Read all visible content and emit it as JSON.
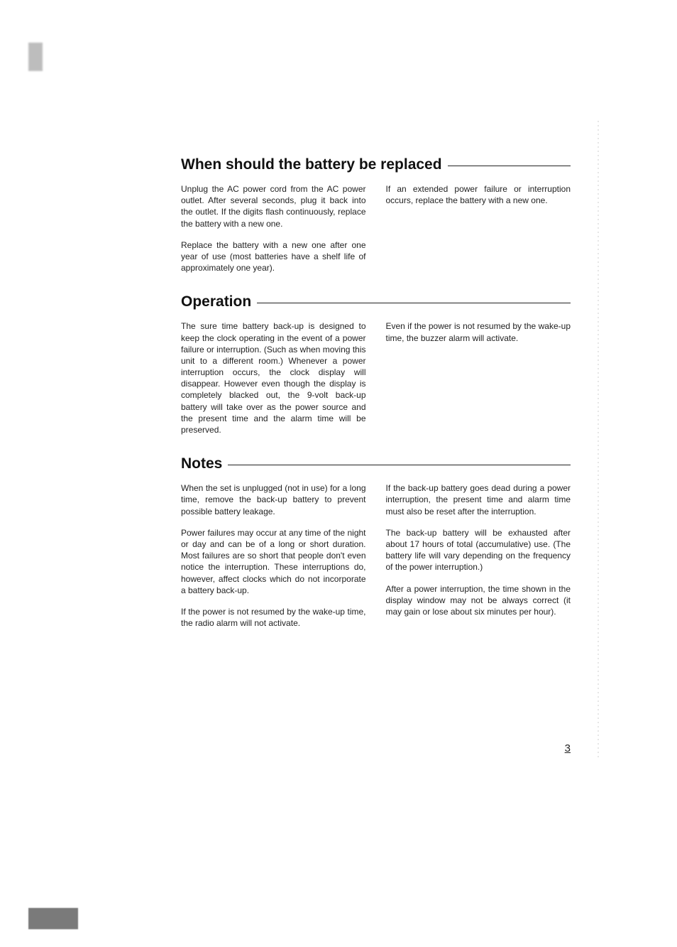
{
  "page_number": "3",
  "typography": {
    "heading_fontsize_pt": 16,
    "body_fontsize_pt": 9,
    "font_family": "Arial, Helvetica, sans-serif",
    "text_color": "#222222",
    "background_color": "#ffffff",
    "rule_color": "#222222"
  },
  "sections": [
    {
      "title": "When should the battery be replaced",
      "left": [
        "Unplug the AC power cord from the AC power outlet. After several seconds, plug it back into the outlet. If the digits flash continuously, replace the battery with a new one.",
        "Replace the battery with a new one after one year of use (most batteries have a shelf life of approximately one year)."
      ],
      "right": [
        "If an extended power failure or interruption occurs, replace the battery with a new one."
      ]
    },
    {
      "title": "Operation",
      "left": [
        "The sure time battery back-up is designed to keep the clock operating in the event of a power failure or interruption. (Such as when moving this unit to a different room.) Whenever a power interruption occurs, the clock display will disappear. However even though the display is completely blacked out, the 9-volt back-up battery will take over as the power source and the present time and the alarm time will be preserved."
      ],
      "right": [
        "Even if the power is not resumed by the wake-up time, the buzzer alarm will activate."
      ]
    },
    {
      "title": "Notes",
      "left": [
        "When the set is unplugged (not in use) for a long time, remove the back-up battery to prevent possible battery leakage.",
        "Power failures may occur at any time of the night or day and can be of a long or short duration.\nMost failures are so short that people don't even notice the interruption. These interruptions do, however, affect clocks which do not incorporate a battery back-up.",
        "If the power is not resumed by the wake-up time, the radio alarm will not activate."
      ],
      "right": [
        "If the back-up battery goes dead during a power interruption, the present time and alarm time must also be reset after the interruption.",
        "The back-up battery will be exhausted after about 17 hours of total (accumulative) use. (The battery life will vary depending on the frequency of the power interruption.)",
        "After a power interruption, the time shown in the display window may not be always correct (it may gain or lose about six minutes per hour)."
      ]
    }
  ]
}
